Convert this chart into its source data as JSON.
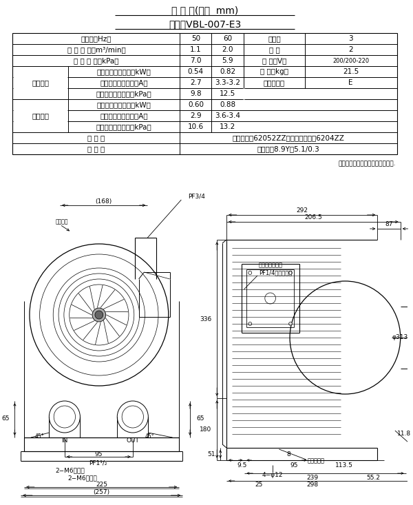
{
  "title1": "寸 法 図(単位  mm)",
  "title2": "形式：VBL-007-E3",
  "bg_color": "#ffffff",
  "note": "注）銅板表示は吸込特性表示です.",
  "row0": [
    "周波数（Hz）",
    "50",
    "60",
    "相　数",
    "3"
  ],
  "row1": [
    "定 格 風 量（m³/min）",
    "1.1",
    "2.0",
    "極 数",
    "2"
  ],
  "row2": [
    "定 格 静 圧（kPa）",
    "7.0",
    "5.9",
    "電 圧（V）",
    "200/200-220"
  ],
  "row3_label": "吸込特性",
  "row3": [
    "最大使用可能出力（kW）",
    "0.54",
    "0.82",
    "質 量（kg）",
    "21.5"
  ],
  "row4": [
    "最大使用可能電流（A）",
    "2.7",
    "3.3-3.2",
    "耗熱クラス",
    "E"
  ],
  "row5": [
    "最大使用可能静圧（kPa）",
    "9.8",
    "12.5",
    "",
    ""
  ],
  "row6_label": "吐出特性",
  "row6": [
    "最大使用可能出力（kW）",
    "0.60",
    "0.88",
    "",
    ""
  ],
  "row7": [
    "最大使用可能電流（A）",
    "2.9",
    "3.6-3.4",
    "",
    ""
  ],
  "row8": [
    "最大使用可能静圧（kPa）",
    "10.6",
    "13.2",
    "",
    ""
  ],
  "row9": [
    "玉 軸 受",
    "ブロワ側：62052ZZ　モートル側：6204ZZ"
  ],
  "row10": [
    "塗 装 色",
    "マンセル8.9Y、5.1/0.3"
  ],
  "font_size": 7.5,
  "line_color": "#000000",
  "dim_color": "#000000"
}
